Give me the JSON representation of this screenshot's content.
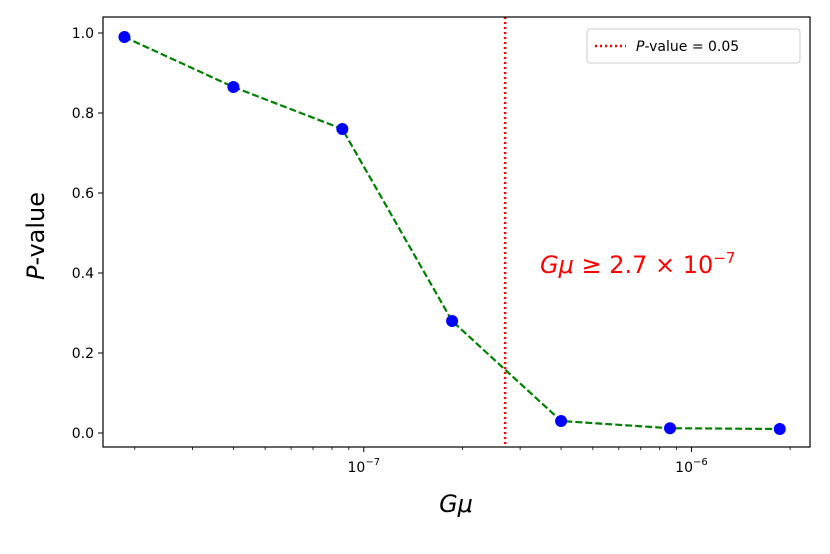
{
  "chart_data": {
    "type": "line",
    "x_scale": "log",
    "xlim": [
      1.6e-08,
      2.3e-06
    ],
    "ylim": [
      -0.035,
      1.04
    ],
    "xlabel": {
      "italic": "Gμ",
      "rest": ""
    },
    "ylabel": {
      "italic": "P",
      "rest": "-value"
    },
    "x_major_ticks": [
      {
        "value": 1e-07,
        "base": "10",
        "exp": "−7"
      },
      {
        "value": 1e-06,
        "base": "10",
        "exp": "−6"
      }
    ],
    "y_ticks": [
      {
        "value": 0.0,
        "label": "0.0"
      },
      {
        "value": 0.2,
        "label": "0.2"
      },
      {
        "value": 0.4,
        "label": "0.4"
      },
      {
        "value": 0.6,
        "label": "0.6"
      },
      {
        "value": 0.8,
        "label": "0.8"
      },
      {
        "value": 1.0,
        "label": "1.0"
      }
    ],
    "series": [
      {
        "x": [
          1.86e-08,
          4e-08,
          8.6e-08,
          1.86e-07,
          4e-07,
          8.6e-07,
          1.86e-06
        ],
        "y": [
          0.99,
          0.865,
          0.76,
          0.28,
          0.03,
          0.012,
          0.01
        ],
        "line_color": "#008000",
        "marker_color": "#0000ff",
        "line_style": "dashed"
      }
    ],
    "vline": {
      "x": 2.7e-07,
      "color": "#ff0000",
      "style": "dotted"
    },
    "legend": {
      "position": "top-right",
      "entries": [
        {
          "italic": "P",
          "rest": "-value = 0.05",
          "color": "#ff0000",
          "style": "dotted"
        }
      ]
    },
    "annotation": {
      "text_italic": "Gμ",
      "text_rest": " ≥ 2.7 × 10",
      "exp": "−7",
      "color": "#ff0000"
    },
    "grid": false
  }
}
